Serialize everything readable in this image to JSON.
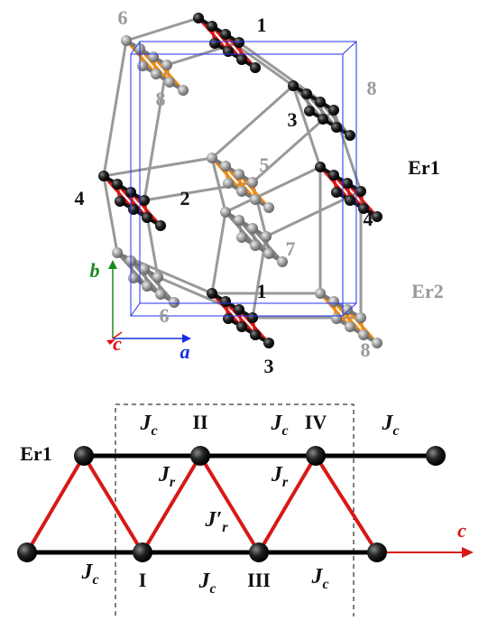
{
  "structure": {
    "labels": [
      "6",
      "1",
      "8",
      "3",
      "8",
      "Er1",
      "5",
      "4",
      "2",
      "4",
      "7",
      "1",
      "Er2",
      "6",
      "8",
      "3"
    ],
    "axes": {
      "a": "a",
      "b": "b",
      "c": "c"
    }
  },
  "chain": {
    "name": "Er1",
    "sites": [
      "I",
      "II",
      "III",
      "IV"
    ],
    "couplings": [
      {
        "symbol": "J",
        "subscript": "c"
      },
      {
        "symbol": "J",
        "subscript": "c"
      },
      {
        "symbol": "J",
        "subscript": "c"
      },
      {
        "symbol": "J",
        "subscript": "c"
      },
      {
        "symbol": "J",
        "subscript": "c"
      },
      {
        "symbol": "J",
        "subscript": "c"
      },
      {
        "symbol": "J",
        "subscript": "r"
      },
      {
        "symbol": "J",
        "subscript": "r"
      },
      {
        "symbol": "J′",
        "subscript": "r"
      }
    ],
    "direction": "c"
  }
}
